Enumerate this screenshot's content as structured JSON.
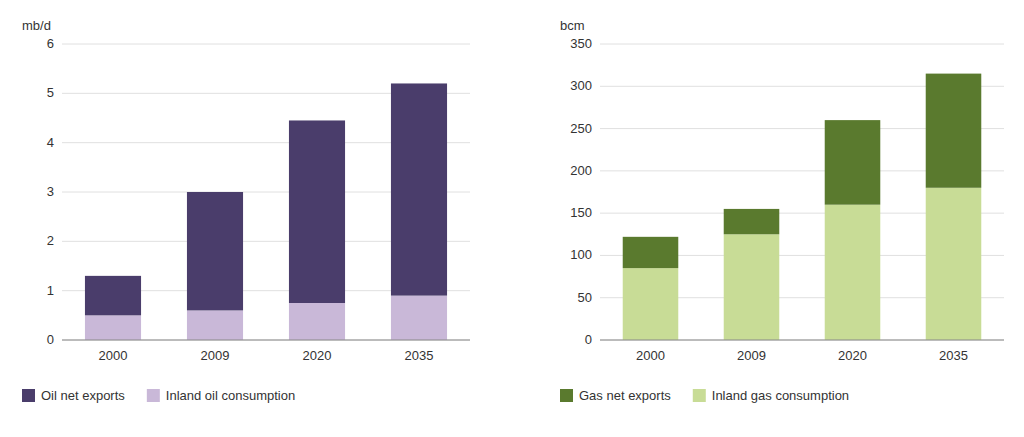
{
  "chart_data": [
    {
      "type": "bar",
      "stacked": true,
      "grid": true,
      "legend": "bottom",
      "ylabel": "mb/d",
      "categories": [
        "2000",
        "2009",
        "2020",
        "2035"
      ],
      "series": [
        {
          "name": "Inland oil consumption",
          "color": "#c9b8d8",
          "values": [
            0.5,
            0.6,
            0.75,
            0.9
          ]
        },
        {
          "name": "Oil net exports",
          "color": "#4a3d6b",
          "values": [
            0.8,
            2.4,
            3.7,
            4.3
          ]
        }
      ],
      "ylim": [
        0,
        6
      ],
      "yticks": [
        0,
        1,
        2,
        3,
        4,
        5,
        6
      ]
    },
    {
      "type": "bar",
      "stacked": true,
      "grid": true,
      "legend": "bottom",
      "ylabel": "bcm",
      "categories": [
        "2000",
        "2009",
        "2020",
        "2035"
      ],
      "series": [
        {
          "name": "Inland gas consumption",
          "color": "#c8dc96",
          "values": [
            85,
            125,
            160,
            180
          ]
        },
        {
          "name": "Gas net exports",
          "color": "#5a7a2e",
          "values": [
            37,
            30,
            100,
            135
          ]
        }
      ],
      "ylim": [
        0,
        350
      ],
      "yticks": [
        0,
        50,
        100,
        150,
        200,
        250,
        300,
        350
      ]
    }
  ]
}
